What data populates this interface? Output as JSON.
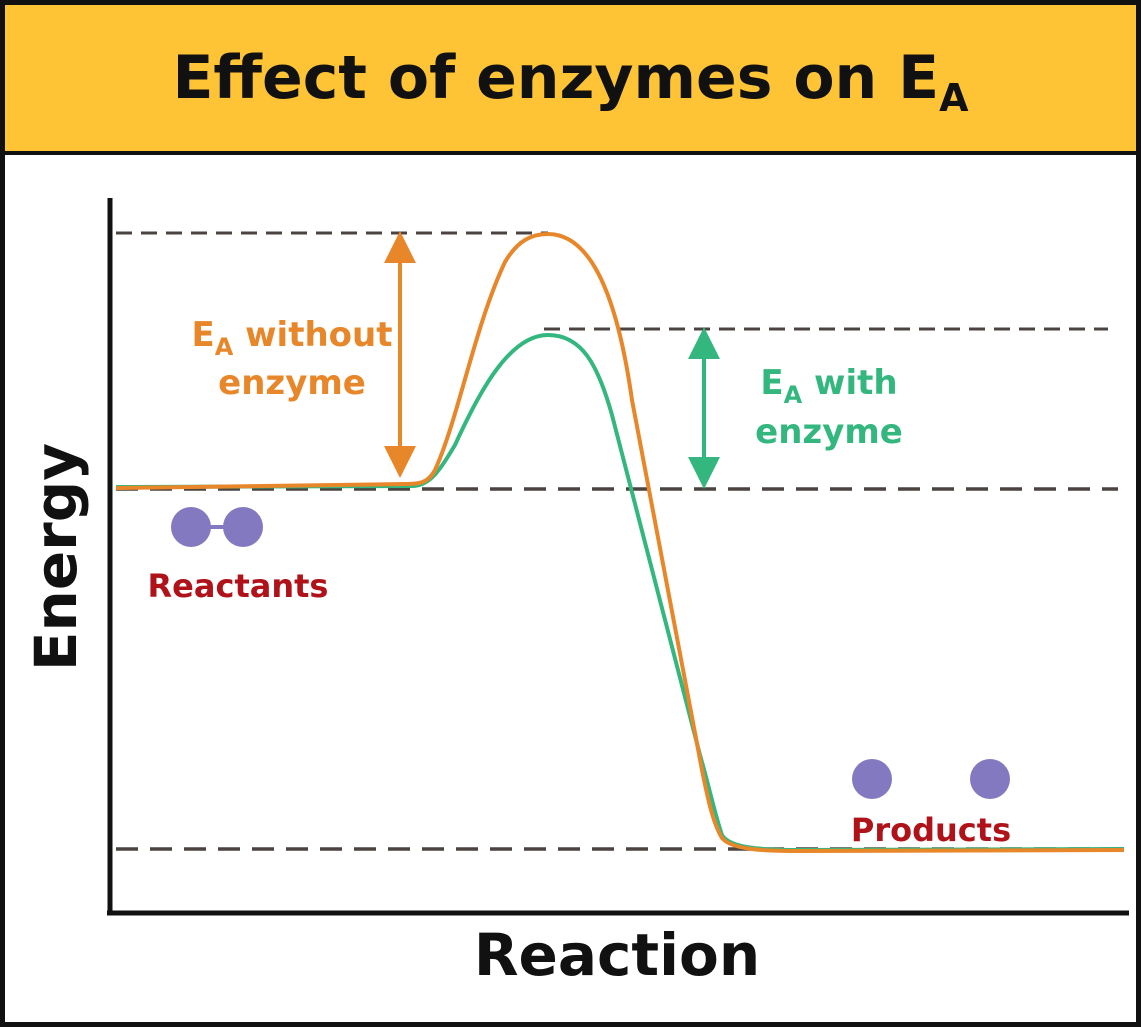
{
  "title": {
    "main": "Effect of enzymes on E",
    "subscript": "A"
  },
  "axes": {
    "y_label": "Energy",
    "x_label": "Reaction"
  },
  "annotations": {
    "without_enzyme": {
      "symbol": "E",
      "subscript": "A",
      "line1_rest": " without",
      "line2": "enzyme"
    },
    "with_enzyme": {
      "symbol": "E",
      "subscript": "A",
      "line1_rest": " with",
      "line2": "enzyme"
    }
  },
  "labels": {
    "reactants": "Reactants",
    "products": "Products"
  },
  "colors": {
    "header_bg": "#FEC435",
    "without_enzyme": "#E8862A",
    "with_enzyme": "#34B77E",
    "reactant_text": "#B0121A",
    "molecule": "#8379C1",
    "guide_line": "#4A4340",
    "axis": "#111111"
  }
}
